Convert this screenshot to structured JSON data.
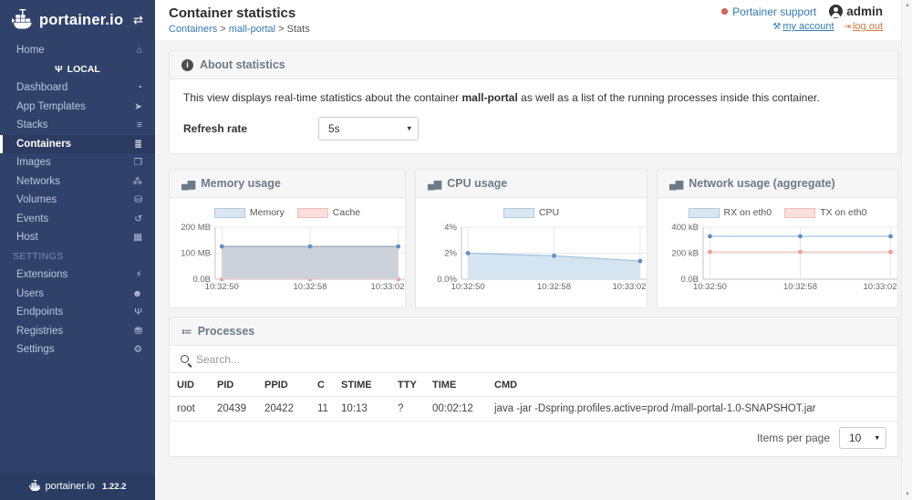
{
  "icons": {
    "home": "⌂",
    "exchange": "⇄",
    "plug": "Ψ",
    "dashboard": "◔",
    "app-templates": "➤",
    "stacks": "≡",
    "containers": "≣",
    "images": "❐",
    "networks": "⁂",
    "volumes": "⛁",
    "events": "↺",
    "host": "▦",
    "extensions": "⚡",
    "users": "☻",
    "endpoints": "Ψ",
    "registries": "⛃",
    "settings": "⚙",
    "chart": "▄▆",
    "processes": "≔",
    "caret": "▾",
    "wrench": "⚒",
    "signout": "⇥",
    "scroll-up": "▲",
    "scroll-down": "▼"
  },
  "colors": {
    "sidebar_bg": "#30426a",
    "accent": "#337ab7",
    "support_icon": "#d35c4b",
    "logout": "#d9763f",
    "memory_fill": "#cdd2da",
    "cpu_fill": "#d4e4f1",
    "blue_dot": "#5d8fc7",
    "pink_line": "#f2bdb8"
  },
  "sidebar": {
    "brand": "portainer.io",
    "items": [
      {
        "label": "Home",
        "icon": "home",
        "type": "item"
      },
      {
        "label": "LOCAL",
        "icon": "plug",
        "type": "cluster"
      },
      {
        "label": "Dashboard",
        "icon": "dashboard",
        "type": "item"
      },
      {
        "label": "App Templates",
        "icon": "app-templates",
        "type": "item"
      },
      {
        "label": "Stacks",
        "icon": "stacks",
        "type": "item"
      },
      {
        "label": "Containers",
        "icon": "containers",
        "type": "item",
        "active": true
      },
      {
        "label": "Images",
        "icon": "images",
        "type": "item"
      },
      {
        "label": "Networks",
        "icon": "networks",
        "type": "item"
      },
      {
        "label": "Volumes",
        "icon": "volumes",
        "type": "item"
      },
      {
        "label": "Events",
        "icon": "events",
        "type": "item"
      },
      {
        "label": "Host",
        "icon": "host",
        "type": "item"
      },
      {
        "label": "SETTINGS",
        "type": "section"
      },
      {
        "label": "Extensions",
        "icon": "extensions",
        "type": "item"
      },
      {
        "label": "Users",
        "icon": "users",
        "type": "item"
      },
      {
        "label": "Endpoints",
        "icon": "endpoints",
        "type": "item"
      },
      {
        "label": "Registries",
        "icon": "registries",
        "type": "item"
      },
      {
        "label": "Settings",
        "icon": "settings",
        "type": "item"
      }
    ],
    "footer": {
      "brand": "portainer.io",
      "version": "1.22.2"
    }
  },
  "header": {
    "title": "Container statistics",
    "breadcrumb": [
      {
        "label": "Containers",
        "link": true
      },
      {
        "label": "mall-portal",
        "link": true
      },
      {
        "label": "Stats",
        "link": false
      }
    ],
    "support": "Portainer support",
    "user": "admin",
    "my_account": "my account",
    "log_out": "log out"
  },
  "about": {
    "title": "About statistics",
    "text_before": "This view displays real-time statistics about the container ",
    "container_name": "mall-portal",
    "text_after": " as well as a list of the running processes inside this container.",
    "refresh_label": "Refresh rate",
    "refresh_value": "5s"
  },
  "chart_data": [
    {
      "type": "area",
      "title": "Memory usage",
      "x": [
        "10:32:50",
        "10:32:58",
        "10:33:02"
      ],
      "ymax": 200,
      "yticks": [
        {
          "value": 200,
          "label": "200 MB"
        },
        {
          "value": 100,
          "label": "100 MB"
        },
        {
          "value": 0,
          "label": "0.0B"
        }
      ],
      "legend_position": "top",
      "grid": true,
      "series": [
        {
          "name": "Memory",
          "values": [
            126,
            126,
            126
          ],
          "unit": "MB",
          "line": "#97a6bb",
          "fill": "#cdd2da",
          "dot": "#5d8fc7",
          "swatch_fill": "#dae7f2",
          "swatch_border": "#aecadf"
        },
        {
          "name": "Cache",
          "values": [
            0,
            0,
            0
          ],
          "unit": "MB",
          "line": "#f2bdb8",
          "fill": "none",
          "dot": "#ef9f99",
          "swatch_fill": "#fbdfdd",
          "swatch_border": "#f2bdb8"
        }
      ]
    },
    {
      "type": "area",
      "title": "CPU usage",
      "x": [
        "10:32:50",
        "10:32:58",
        "10:33:02"
      ],
      "ymax": 4,
      "yticks": [
        {
          "value": 4,
          "label": "4%"
        },
        {
          "value": 2,
          "label": "2%"
        },
        {
          "value": 0,
          "label": "0.0%"
        }
      ],
      "legend_position": "top",
      "grid": true,
      "series": [
        {
          "name": "CPU",
          "values": [
            2.0,
            1.8,
            1.4
          ],
          "unit": "%",
          "line": "#a3c3de",
          "fill": "#d4e4f1",
          "dot": "#5d8fc7",
          "swatch_fill": "#dae7f2",
          "swatch_border": "#aecadf"
        }
      ]
    },
    {
      "type": "line",
      "title": "Network usage (aggregate)",
      "x": [
        "10:32:50",
        "10:32:58",
        "10:33:02"
      ],
      "ymax": 400,
      "yticks": [
        {
          "value": 400,
          "label": "400 kB"
        },
        {
          "value": 200,
          "label": "200 kB"
        },
        {
          "value": 0,
          "label": "0.0B"
        }
      ],
      "legend_position": "top",
      "grid": true,
      "series": [
        {
          "name": "RX on eth0",
          "values": [
            330,
            330,
            330
          ],
          "unit": "kB",
          "line": "#a3c3de",
          "fill": "none",
          "dot": "#5d8fc7",
          "swatch_fill": "#dae7f2",
          "swatch_border": "#aecadf"
        },
        {
          "name": "TX on eth0",
          "values": [
            210,
            210,
            210
          ],
          "unit": "kB",
          "line": "#f2bdb8",
          "fill": "none",
          "dot": "#ef9f99",
          "swatch_fill": "#fbdfdd",
          "swatch_border": "#f2bdb8"
        }
      ]
    }
  ],
  "processes": {
    "title": "Processes",
    "search_placeholder": "Search...",
    "columns": [
      "UID",
      "PID",
      "PPID",
      "C",
      "STIME",
      "TTY",
      "TIME",
      "CMD"
    ],
    "rows": [
      [
        "root",
        "20439",
        "20422",
        "11",
        "10:13",
        "?",
        "00:02:12",
        "java -jar -Dspring.profiles.active=prod /mall-portal-1.0-SNAPSHOT.jar"
      ]
    ],
    "items_per_page_label": "Items per page",
    "items_per_page_value": "10"
  }
}
